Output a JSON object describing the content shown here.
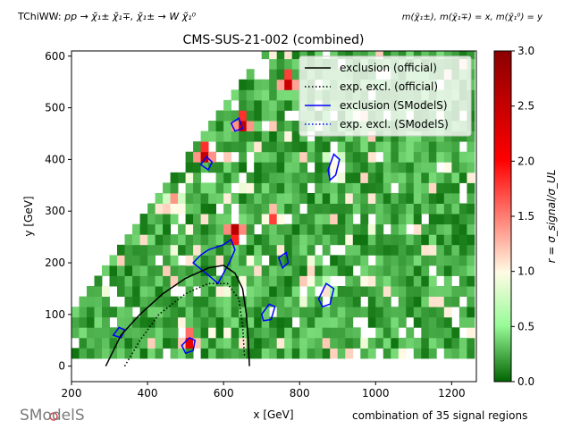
{
  "header": {
    "process_prefix": "TChiWW: ",
    "process": "pp → χ̃₁± χ̃₁∓, χ̃₁± → W χ̃₁⁰",
    "mass_assignment": "m(χ̃₁±), m(χ̃₁∓) = x, m(χ̃₁⁰) = y"
  },
  "footer": {
    "logo_text": "SModelS",
    "note": "combination of 35 signal regions"
  },
  "chart_data": {
    "type": "heatmap",
    "title": "CMS-SUS-21-002 (combined)",
    "xlabel": "x [GeV]",
    "ylabel": "y [GeV]",
    "xlim": [
      200,
      1265
    ],
    "ylim": [
      -30,
      610
    ],
    "xticks": [
      200,
      400,
      600,
      800,
      1000,
      1200
    ],
    "yticks": [
      0,
      100,
      200,
      300,
      400,
      500,
      600
    ],
    "colorbar": {
      "label": "r = σ_signal/σ_UL",
      "range": [
        0,
        3
      ],
      "ticks": [
        "0.0",
        "0.5",
        "1.0",
        "1.5",
        "2.0",
        "2.5",
        "3.0"
      ],
      "colors": [
        "#006400",
        "#98fb98",
        "#fffbe4",
        "#ff0000",
        "#8b0000"
      ]
    },
    "legend": {
      "placement": "top-right",
      "entries": [
        {
          "label": "exclusion (official)",
          "color": "#000000",
          "style": "solid"
        },
        {
          "label": "exp. excl. (official)",
          "color": "#000000",
          "style": "dotted"
        },
        {
          "label": "exclusion (SModelS)",
          "color": "#0000ff",
          "style": "solid"
        },
        {
          "label": "exp. excl. (SModelS)",
          "color": "#0000ff",
          "style": "dotted"
        }
      ]
    },
    "official_exclusion": [
      [
        290,
        0
      ],
      [
        330,
        60
      ],
      [
        380,
        100
      ],
      [
        440,
        140
      ],
      [
        500,
        170
      ],
      [
        560,
        190
      ],
      [
        600,
        195
      ],
      [
        630,
        180
      ],
      [
        650,
        150
      ],
      [
        660,
        100
      ],
      [
        665,
        50
      ],
      [
        668,
        0
      ]
    ],
    "official_expected": [
      [
        340,
        0
      ],
      [
        380,
        50
      ],
      [
        430,
        100
      ],
      [
        500,
        140
      ],
      [
        560,
        160
      ],
      [
        610,
        160
      ],
      [
        640,
        130
      ],
      [
        650,
        80
      ],
      [
        655,
        20
      ]
    ],
    "smodels_exclusion_contours": [
      [
        [
          520,
          200
        ],
        [
          540,
          215
        ],
        [
          560,
          225
        ],
        [
          580,
          230
        ],
        [
          600,
          235
        ],
        [
          620,
          245
        ],
        [
          630,
          225
        ],
        [
          615,
          200
        ],
        [
          600,
          180
        ],
        [
          585,
          160
        ],
        [
          570,
          170
        ],
        [
          545,
          185
        ]
      ],
      [
        [
          490,
          40
        ],
        [
          510,
          55
        ],
        [
          525,
          50
        ],
        [
          520,
          30
        ],
        [
          500,
          25
        ]
      ],
      [
        [
          620,
          470
        ],
        [
          640,
          480
        ],
        [
          650,
          460
        ],
        [
          630,
          455
        ]
      ],
      [
        [
          540,
          390
        ],
        [
          555,
          405
        ],
        [
          570,
          395
        ],
        [
          560,
          380
        ]
      ],
      [
        [
          875,
          380
        ],
        [
          890,
          410
        ],
        [
          905,
          400
        ],
        [
          895,
          370
        ],
        [
          880,
          360
        ]
      ],
      [
        [
          850,
          130
        ],
        [
          870,
          160
        ],
        [
          890,
          150
        ],
        [
          880,
          120
        ],
        [
          860,
          115
        ]
      ],
      [
        [
          700,
          100
        ],
        [
          720,
          120
        ],
        [
          735,
          115
        ],
        [
          725,
          90
        ],
        [
          705,
          88
        ]
      ],
      [
        [
          745,
          210
        ],
        [
          765,
          220
        ],
        [
          770,
          200
        ],
        [
          755,
          190
        ]
      ],
      [
        [
          310,
          60
        ],
        [
          325,
          75
        ],
        [
          340,
          70
        ],
        [
          330,
          55
        ]
      ]
    ],
    "grid_x_range": [
      200,
      1260
    ],
    "grid_y_range": [
      15,
      610
    ],
    "cell_size_gev": 20,
    "boundary": "y < x - 90",
    "notable_r_values": [
      {
        "x": 620,
        "y": 250,
        "r": 3.0
      },
      {
        "x": 540,
        "y": 400,
        "r": 2.9
      },
      {
        "x": 640,
        "y": 460,
        "r": 2.9
      },
      {
        "x": 720,
        "y": 280,
        "r": 2.0
      },
      {
        "x": 880,
        "y": 390,
        "r": 1.6
      },
      {
        "x": 860,
        "y": 140,
        "r": 1.1
      },
      {
        "x": 460,
        "y": 310,
        "r": 1.6
      },
      {
        "x": 500,
        "y": 40,
        "r": 2.5
      },
      {
        "x": 760,
        "y": 540,
        "r": 2.8
      }
    ]
  }
}
